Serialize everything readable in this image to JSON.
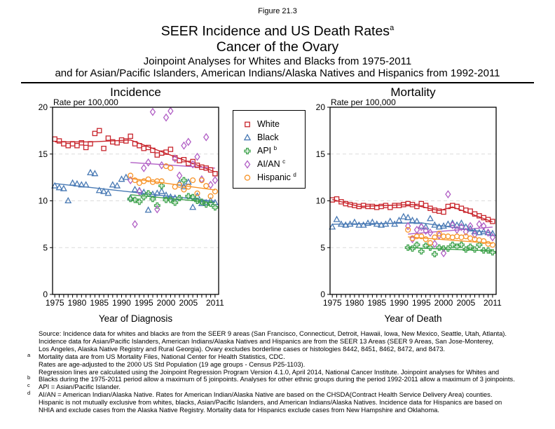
{
  "header": {
    "figure_label": "Figure 21.3",
    "title": "SEER Incidence and US Death Rates",
    "title_sup": "a",
    "subtitle": "Cancer of the Ovary",
    "analysis_line1": "Joinpoint Analyses for Whites and Blacks from 1975-2011",
    "analysis_line2": "and for Asian/Pacific Islanders, American Indians/Alaska Natives and Hispanics from 1992-2011"
  },
  "colors": {
    "white_series": "#C8252C",
    "black_series": "#4879B4",
    "api_series": "#3FA24C",
    "aian_series": "#B15FC5",
    "hispanic_series": "#F79429",
    "gridline": "#DBDBDB"
  },
  "legend": {
    "items": [
      {
        "id": "white",
        "label": "White",
        "sup": "",
        "marker": "square",
        "color": "#C8252C"
      },
      {
        "id": "black",
        "label": "Black",
        "sup": "",
        "marker": "triangle",
        "color": "#4879B4"
      },
      {
        "id": "api",
        "label": "API",
        "sup": "b",
        "marker": "club",
        "color": "#3FA24C"
      },
      {
        "id": "aian",
        "label": "AI/AN",
        "sup": "c",
        "marker": "diamond",
        "color": "#B15FC5"
      },
      {
        "id": "hispanic",
        "label": "Hispanic",
        "sup": "d",
        "marker": "circle",
        "color": "#F79429"
      }
    ]
  },
  "chart_data": [
    {
      "type": "scatter",
      "title": "Incidence",
      "ylabel": "Rate per 100,000",
      "xlabel": "Year of Diagnosis",
      "xlim": [
        1974.5,
        2011.8
      ],
      "ylim": [
        0,
        20
      ],
      "yticks": [
        0,
        5,
        10,
        15,
        20
      ],
      "xticks": [
        1975,
        1980,
        1985,
        1990,
        1995,
        2000,
        2005,
        2011
      ],
      "minor_ticks_every_year": [
        1975,
        2011
      ],
      "gridlines": [
        5,
        10,
        15
      ],
      "grid_style": "dashed-light",
      "series": [
        {
          "id": "white",
          "name": "White",
          "marker": "square",
          "color": "#C8252C",
          "start_year": 1975,
          "values": [
            16.6,
            16.4,
            16.1,
            15.9,
            16.1,
            15.9,
            16.2,
            15.7,
            16.1,
            17.2,
            17.5,
            15.6,
            16.7,
            16.3,
            16.2,
            16.5,
            16.4,
            16.9,
            16.1,
            15.9,
            15.6,
            15.7,
            15.4,
            14.9,
            15.1,
            15.2,
            15.5,
            14.6,
            14.3,
            14.4,
            14.0,
            14.2,
            13.8,
            13.6,
            13.5,
            13.3,
            12.9
          ],
          "trend": [
            [
              1975,
              16.3
            ],
            [
              1983,
              16.3
            ],
            [
              1992,
              16.5
            ],
            [
              2011,
              13.1
            ]
          ]
        },
        {
          "id": "black",
          "name": "Black",
          "marker": "triangle",
          "color": "#4879B4",
          "start_year": 1975,
          "values": [
            11.6,
            11.4,
            11.3,
            10.0,
            11.9,
            11.8,
            11.7,
            11.7,
            13.0,
            12.9,
            11.1,
            11.0,
            10.8,
            11.7,
            11.6,
            12.3,
            12.5,
            10.3,
            11.2,
            11.1,
            10.9,
            9.0,
            10.7,
            10.8,
            11.0,
            10.6,
            10.4,
            10.3,
            11.9,
            11.5,
            12.0,
            9.3,
            10.5,
            9.7,
            9.8,
            10.0,
            9.8
          ],
          "trend": [
            [
              1975,
              11.85
            ],
            [
              2011,
              9.95
            ]
          ]
        },
        {
          "id": "api",
          "name": "API",
          "marker": "club",
          "color": "#3FA24C",
          "start_year": 1992,
          "values": [
            10.2,
            10.1,
            9.9,
            10.4,
            10.8,
            10.2,
            9.5,
            11.6,
            10.1,
            10.1,
            9.8,
            10.3,
            12.2,
            10.5,
            10.4,
            10.0,
            9.9,
            9.6,
            9.7,
            9.3
          ],
          "trend": [
            [
              1992,
              10.65
            ],
            [
              2011,
              9.8
            ]
          ]
        },
        {
          "id": "aian",
          "name": "AI/AN",
          "marker": "diamond",
          "color": "#B15FC5",
          "start_year": 1992,
          "values": [
            12.2,
            7.5,
            11.0,
            13.5,
            14.1,
            19.5,
            9.1,
            13.8,
            18.9,
            19.6,
            14.5,
            12.7,
            15.9,
            16.3,
            13.9,
            14.7,
            12.3,
            16.8,
            11.7,
            12.2
          ],
          "trend": [
            [
              1992,
              14.1
            ],
            [
              2011,
              13.5
            ]
          ]
        },
        {
          "id": "hispanic",
          "name": "Hispanic",
          "marker": "circle",
          "color": "#F79429",
          "start_year": 1992,
          "values": [
            12.7,
            12.2,
            11.9,
            12.1,
            12.3,
            12.0,
            12.1,
            12.1,
            13.7,
            13.5,
            11.5,
            11.7,
            11.2,
            11.5,
            12.2,
            10.8,
            12.2,
            11.6,
            10.5,
            11.0
          ],
          "trend": [
            [
              1992,
              12.4
            ],
            [
              2011,
              11.15
            ]
          ]
        }
      ]
    },
    {
      "type": "scatter",
      "title": "Mortality",
      "ylabel": "Rate per 100,000",
      "xlabel": "Year of Death",
      "xlim": [
        1974.5,
        2011.8
      ],
      "ylim": [
        0,
        20
      ],
      "yticks": [
        0,
        5,
        10,
        15,
        20
      ],
      "xticks": [
        1975,
        1980,
        1985,
        1990,
        1995,
        2000,
        2005,
        2011
      ],
      "minor_ticks_every_year": [
        1975,
        2011
      ],
      "gridlines": [
        5,
        10,
        15
      ],
      "grid_style": "dashed-light",
      "series": [
        {
          "id": "white",
          "name": "White",
          "marker": "square",
          "color": "#C8252C",
          "start_year": 1975,
          "values": [
            10.1,
            10.2,
            9.9,
            9.7,
            9.6,
            9.5,
            9.4,
            9.5,
            9.4,
            9.4,
            9.3,
            9.4,
            9.5,
            9.3,
            9.5,
            9.5,
            9.6,
            9.7,
            9.6,
            9.4,
            9.7,
            9.5,
            9.2,
            9.0,
            8.9,
            8.8,
            9.4,
            9.5,
            9.4,
            9.2,
            9.0,
            8.9,
            8.6,
            8.4,
            8.2,
            8.0,
            7.8
          ],
          "trend": [
            [
              1975,
              10.15
            ],
            [
              1981,
              9.4
            ],
            [
              1993,
              9.6
            ],
            [
              1999,
              8.95
            ],
            [
              2002,
              9.35
            ],
            [
              2011,
              7.75
            ]
          ]
        },
        {
          "id": "black",
          "name": "Black",
          "marker": "triangle",
          "color": "#4879B4",
          "start_year": 1975,
          "values": [
            7.2,
            8.0,
            7.5,
            7.4,
            7.5,
            7.7,
            7.4,
            7.4,
            7.6,
            7.7,
            7.5,
            7.4,
            7.5,
            7.8,
            7.5,
            7.9,
            8.3,
            8.2,
            7.9,
            7.8,
            7.3,
            7.2,
            8.1,
            7.4,
            7.2,
            7.3,
            7.5,
            7.6,
            7.4,
            7.6,
            7.2,
            7.0,
            6.7,
            6.6,
            6.7,
            6.6,
            6.5
          ],
          "trend": [
            [
              1975,
              7.5
            ],
            [
              1995,
              7.65
            ],
            [
              2011,
              6.55
            ]
          ]
        },
        {
          "id": "api",
          "name": "API",
          "marker": "club",
          "color": "#3FA24C",
          "start_year": 1992,
          "values": [
            5.0,
            4.9,
            5.3,
            4.6,
            5.2,
            5.0,
            4.3,
            5.0,
            4.9,
            4.9,
            5.3,
            5.1,
            5.3,
            4.8,
            5.1,
            4.8,
            5.3,
            4.7,
            4.7,
            4.5
          ],
          "trend": [
            [
              1992,
              5.0
            ],
            [
              2011,
              4.65
            ]
          ]
        },
        {
          "id": "aian",
          "name": "AI/AN",
          "marker": "diamond",
          "color": "#B15FC5",
          "start_year": 1992,
          "values": [
            7.3,
            5.9,
            6.9,
            7.2,
            6.8,
            6.6,
            5.4,
            6.3,
            4.4,
            10.7,
            7.4,
            6.9,
            7.2,
            6.7,
            7.3,
            6.4,
            7.5,
            7.3,
            6.6,
            6.1
          ],
          "trend": [
            [
              1992,
              6.45
            ],
            [
              2011,
              7.2
            ]
          ]
        },
        {
          "id": "hispanic",
          "name": "Hispanic",
          "marker": "circle",
          "color": "#F79429",
          "start_year": 1992,
          "values": [
            6.9,
            6.0,
            6.2,
            6.2,
            5.9,
            5.5,
            6.1,
            6.5,
            6.2,
            6.2,
            6.1,
            6.2,
            6.1,
            6.2,
            6.0,
            5.9,
            5.8,
            5.7,
            5.4,
            5.3
          ],
          "trend": [
            [
              1992,
              6.15
            ],
            [
              2011,
              5.45
            ]
          ]
        }
      ]
    }
  ],
  "footnotes": [
    {
      "sup": "",
      "text": "Source:  Incidence data for whites and blacks are from the SEER 9 areas (San Francisco, Connecticut, Detroit, Hawaii, Iowa, New Mexico, Seattle, Utah, Atlanta)."
    },
    {
      "sup": "",
      "text": "Incidence data for Asian/Pacific Islanders, American Indians/Alaska Natives and Hispanics are from the SEER 13 Areas (SEER 9 Areas, San Jose-Monterey,"
    },
    {
      "sup": "",
      "text": "Los Angeles, Alaska Native Registry and Rural Georgia).  Ovary excludes borderline cases or histologies 8442, 8451, 8462, 8472, and 8473."
    },
    {
      "sup": "a",
      "text": "Mortality data are from US Mortality Files, National Center for Health Statistics, CDC."
    },
    {
      "sup": "",
      "text": "Rates are age-adjusted to the 2000 US Std Population (19 age groups - Census P25-1103)."
    },
    {
      "sup": "",
      "text": "Regression lines are calculated using the Joinpoint Regression Program Version 4.1.0, April 2014, National Cancer Institute.  Joinpoint analyses for Whites and"
    },
    {
      "sup": "b",
      "text": "Blacks during the 1975-2011 period allow a maximum of 5 joinpoints. Analyses for other ethnic groups during the period 1992-2011 allow a maximum of 3 joinpoints."
    },
    {
      "sup": "c",
      "text": "API = Asian/Pacific Islander."
    },
    {
      "sup": "d",
      "text": "AI/AN = American Indian/Alaska Native.  Rates for American Indian/Alaska Native are based on the CHSDA(Contract Health Service Delivery Area) counties."
    },
    {
      "sup": "",
      "text": "Hispanic is not mutually exclusive from whites, blacks, Asian/Pacific Islanders, and American Indians/Alaska Natives.  Incidence data for Hispanics are based on"
    },
    {
      "sup": "",
      "text": "NHIA and exclude cases from the Alaska Native Registry.  Mortality data for Hispanics exclude cases from New Hampshire and Oklahoma."
    }
  ]
}
